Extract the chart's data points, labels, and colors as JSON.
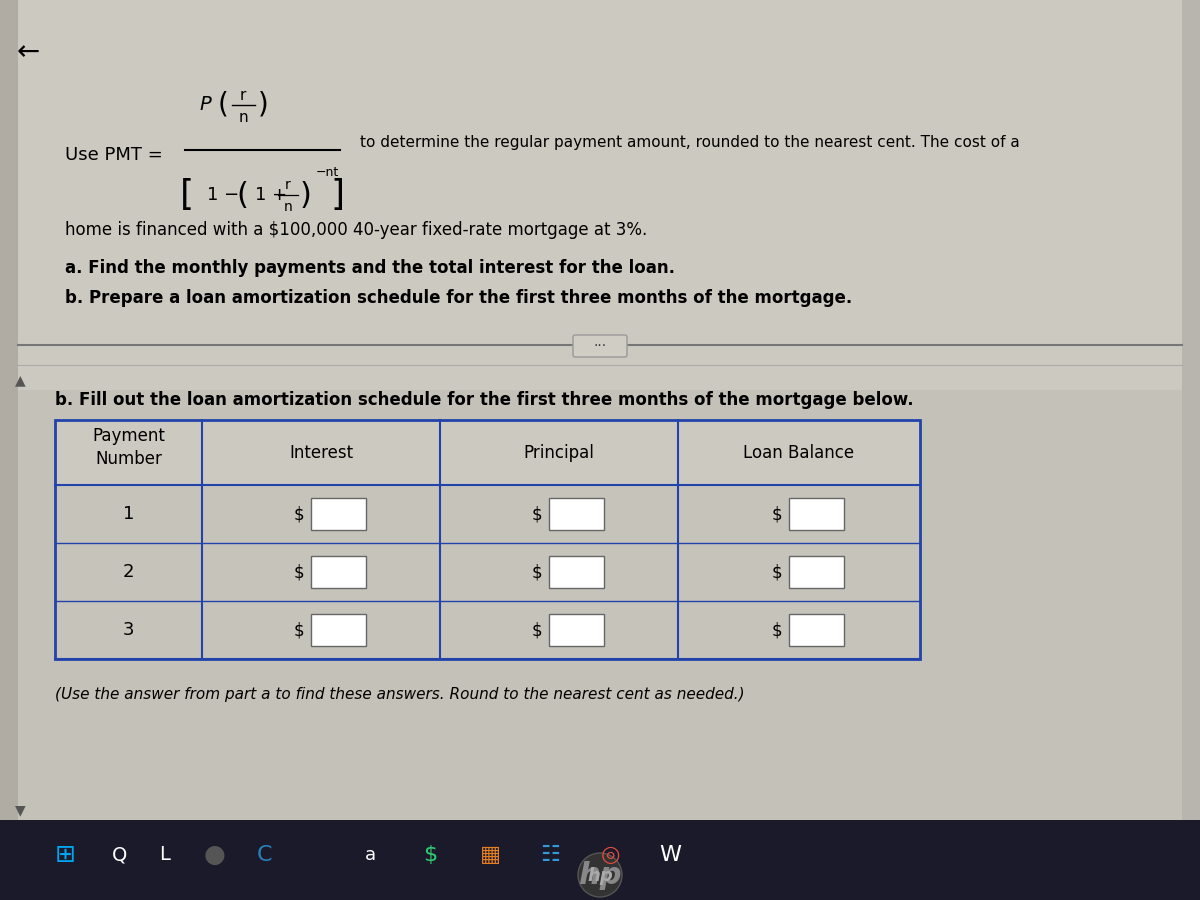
{
  "bg_outer": "#1a1a1a",
  "bg_screen": "#c8c5bb",
  "bg_taskbar": "#1a1a2a",
  "formula_label": "Use PMT =",
  "formula_desc": "to determine the regular payment amount, rounded to the nearest cent. The cost of a",
  "body_text1": "home is financed with a $100,000 40-year fixed-rate mortgage at 3%.",
  "task_a": "a. Find the monthly payments and the total interest for the loan.",
  "task_b": "b. Prepare a loan amortization schedule for the first three months of the mortgage.",
  "section_b": "b. Fill out the loan amortization schedule for the first three months of the mortgage below.",
  "footnote": "(Use the answer from part a to find these answers. Round to the nearest cent as needed.)",
  "table_headers": [
    "Payment\nNumber",
    "Interest",
    "Principal",
    "Loan Balance"
  ],
  "table_rows": [
    "1",
    "2",
    "3"
  ],
  "table_border_color": "#2244aa",
  "text_color": "#000000",
  "divider_color": "#777777",
  "scroll_bar_color": "#aaaaaa",
  "hp_color": "#888888"
}
